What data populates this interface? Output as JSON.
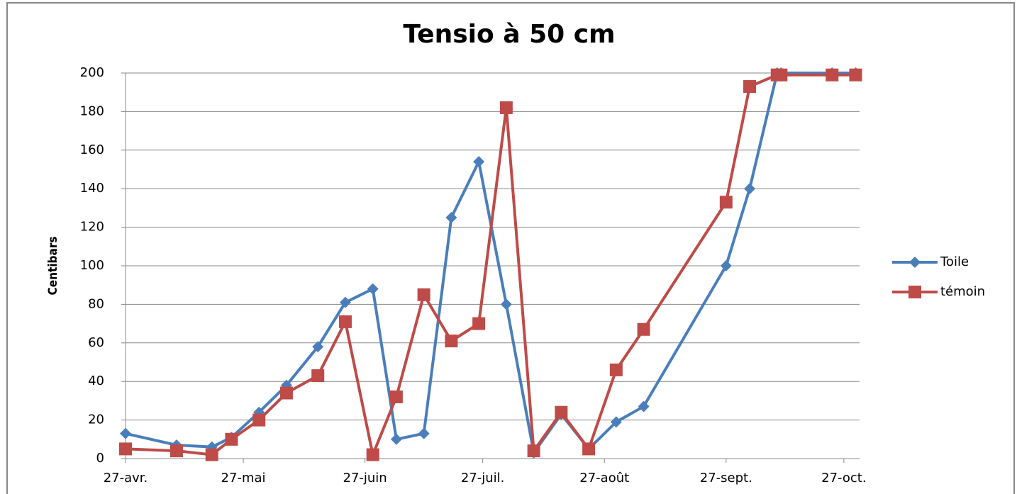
{
  "chart_data": {
    "type": "line",
    "title": "Tensio à 50 cm",
    "y_label": "Centibars",
    "x": [
      0,
      13,
      22,
      27,
      34,
      41,
      49,
      56,
      63,
      69,
      76,
      83,
      90,
      97,
      104,
      111,
      118,
      125,
      132,
      153,
      159,
      166,
      167,
      180,
      186
    ],
    "series": [
      {
        "name": "Toile",
        "color": "#4a7ebb",
        "marker": "diamond",
        "values": [
          13,
          7,
          6,
          11,
          24,
          38,
          58,
          81,
          88,
          10,
          13,
          125,
          154,
          80,
          3,
          23,
          5,
          19,
          27,
          100,
          140,
          200,
          200,
          200,
          200
        ]
      },
      {
        "name": "témoin",
        "color": "#be4b48",
        "marker": "square",
        "values": [
          5,
          4,
          2,
          10,
          20,
          34,
          43,
          71,
          2,
          32,
          85,
          61,
          70,
          182,
          4,
          24,
          5,
          46,
          67,
          133,
          193,
          199,
          199,
          199,
          199
        ]
      }
    ],
    "xlim": [
      0,
      187
    ],
    "xticks": [
      {
        "value": 0,
        "label": "27-avr."
      },
      {
        "value": 30,
        "label": "27-mai"
      },
      {
        "value": 61,
        "label": "27-juin"
      },
      {
        "value": 91,
        "label": "27-juil."
      },
      {
        "value": 122,
        "label": "27-août"
      },
      {
        "value": 153,
        "label": "27-sept."
      },
      {
        "value": 183,
        "label": "27-oct."
      }
    ],
    "ylim": [
      0,
      200
    ],
    "yticks": [
      0,
      20,
      40,
      60,
      80,
      100,
      120,
      140,
      160,
      180,
      200
    ],
    "grid": true,
    "legend": "right"
  }
}
